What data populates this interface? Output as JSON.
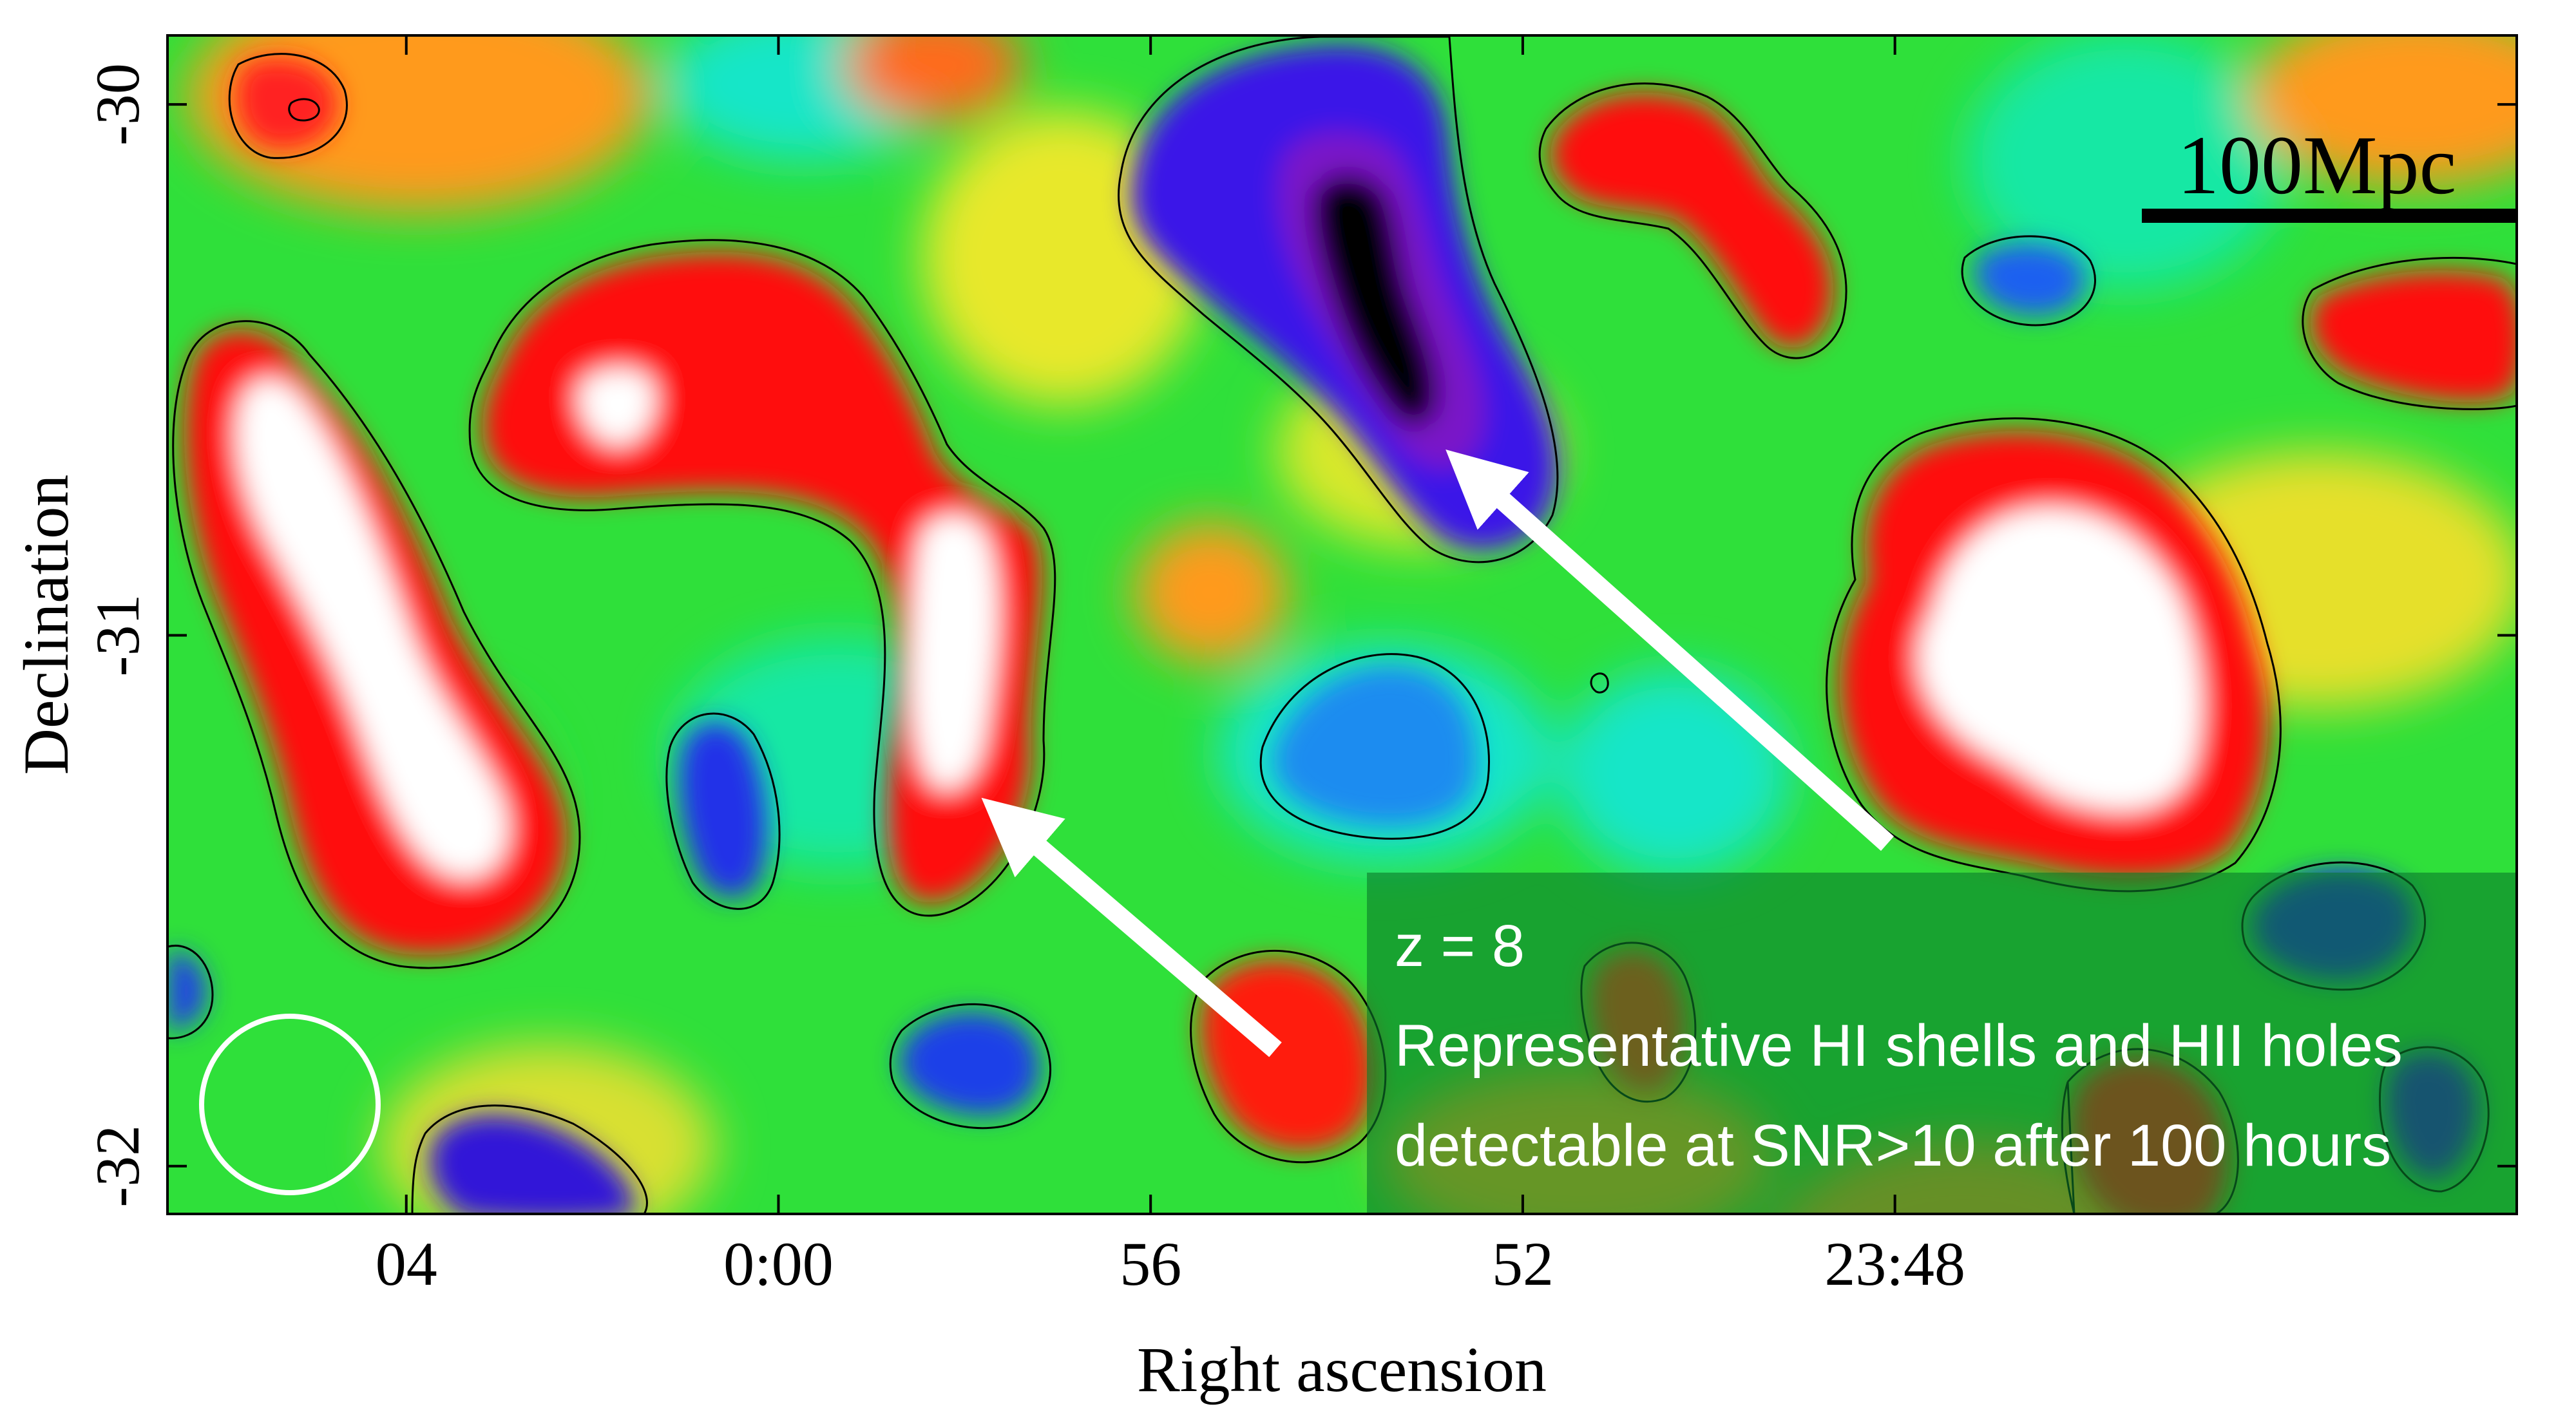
{
  "chart_data": {
    "type": "heatmap",
    "title": "",
    "xlabel": "Right ascension",
    "ylabel": "Declination",
    "x_ticks": [
      "04",
      "0:00",
      "56",
      "52",
      "23:48"
    ],
    "y_ticks": [
      "-30",
      "-31",
      "-32"
    ],
    "x_tick_seconds": [
      240,
      0,
      -240,
      -480,
      -720
    ],
    "xlim_seconds": [
      394,
      -1121
    ],
    "y_tick_values": [
      -30,
      -31,
      -32
    ],
    "ylim": [
      -32.09,
      -29.87
    ],
    "colormap": "rainbow (blue-purple-black low, green mid, red-white high)",
    "contours": true,
    "scale_bar": {
      "label": "100Mpc"
    },
    "beam": {
      "shape": "circle",
      "color": "#ffffff"
    },
    "annotation_lines": [
      "z = 8",
      "Representative HI shells and HII holes",
      "detectable at SNR>10 after 100 hours"
    ],
    "highlights": [
      {
        "kind": "HII hole",
        "ra_s": -350,
        "dec": -30.62
      },
      {
        "kind": "HI shell",
        "ra_s": 10,
        "dec": -31.28
      }
    ]
  }
}
